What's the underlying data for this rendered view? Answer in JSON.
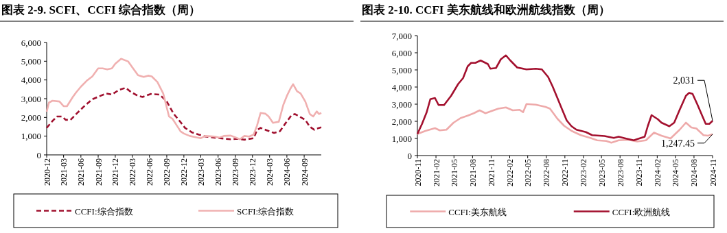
{
  "chart_data": [
    {
      "type": "line",
      "title": "图表 2-9. SCFI、CCFI 综合指数（周）",
      "legend": "bottom",
      "grid": false,
      "marker": "none",
      "xlim": [
        "2020-12",
        "2024-12"
      ],
      "xticks": [
        "2020-12",
        "2021-03",
        "2021-06",
        "2021-09",
        "2021-12",
        "2022-03",
        "2022-06",
        "2022-09",
        "2022-12",
        "2023-03",
        "2023-06",
        "2023-09",
        "2023-12",
        "2024-03",
        "2024-06",
        "2024-09"
      ],
      "ylim": [
        0,
        6000
      ],
      "yticks": [
        0,
        {
          "value": 1000,
          "label": "1,000"
        },
        {
          "value": 2000,
          "label": "2,000"
        },
        {
          "value": 3000,
          "label": "3,000"
        },
        {
          "value": 4000,
          "label": "4,000"
        },
        {
          "value": 5000,
          "label": "5,000"
        },
        {
          "value": 6000,
          "label": "6,000"
        }
      ],
      "series": [
        {
          "name": "CCFI:综合指数",
          "color": "#a0102e",
          "line_style": "dashed",
          "x": [
            "2020-12-01",
            "2021-01-01",
            "2021-01-25",
            "2021-02-19",
            "2021-03-13",
            "2021-04-07",
            "2021-05-07",
            "2021-06-19",
            "2021-08-01",
            "2021-09-13",
            "2021-10-13",
            "2021-11-13",
            "2021-12-19",
            "2022-01-25",
            "2022-02-25",
            "2022-04-01",
            "2022-04-25",
            "2022-06-07",
            "2022-07-25",
            "2022-09-01",
            "2022-10-07",
            "2022-11-13",
            "2022-12-07",
            "2023-01-13",
            "2023-02-19",
            "2023-03-25",
            "2023-05-13",
            "2023-07-01",
            "2023-08-07",
            "2023-09-13",
            "2023-10-19",
            "2023-12-07",
            "2023-12-25",
            "2024-01-13",
            "2024-02-13",
            "2024-03-25",
            "2024-04-25",
            "2024-05-25",
            "2024-06-25",
            "2024-07-13",
            "2024-08-07",
            "2024-09-07",
            "2024-10-01",
            "2024-10-25",
            "2024-11-19",
            "2024-12-01"
          ],
          "values": [
            1440,
            1810,
            2050,
            2050,
            1870,
            1870,
            2180,
            2600,
            2970,
            3150,
            3280,
            3220,
            3460,
            3580,
            3340,
            3150,
            3090,
            3250,
            3220,
            2850,
            2200,
            1750,
            1440,
            1200,
            1080,
            980,
            920,
            870,
            830,
            860,
            810,
            890,
            1320,
            1440,
            1320,
            1170,
            1260,
            1690,
            2110,
            2180,
            2050,
            1870,
            1500,
            1340,
            1440,
            1470
          ]
        },
        {
          "name": "SCFI:综合指数",
          "color": "#f0b0b0",
          "line_style": "solid",
          "x": [
            "2020-12-01",
            "2020-12-13",
            "2021-01-01",
            "2021-02-07",
            "2021-03-01",
            "2021-03-19",
            "2021-04-19",
            "2021-05-07",
            "2021-06-01",
            "2021-07-01",
            "2021-08-01",
            "2021-09-01",
            "2021-09-25",
            "2021-10-19",
            "2021-11-13",
            "2021-12-01",
            "2022-01-01",
            "2022-02-07",
            "2022-03-01",
            "2022-04-01",
            "2022-05-01",
            "2022-05-25",
            "2022-06-13",
            "2022-07-13",
            "2022-08-13",
            "2022-09-13",
            "2022-10-01",
            "2022-10-25",
            "2022-11-13",
            "2022-12-01",
            "2023-01-01",
            "2023-02-07",
            "2023-03-01",
            "2023-03-25",
            "2023-05-13",
            "2023-06-07",
            "2023-07-01",
            "2023-08-07",
            "2023-09-01",
            "2023-09-25",
            "2023-10-19",
            "2023-11-13",
            "2023-12-07",
            "2023-12-25",
            "2024-01-13",
            "2024-02-07",
            "2024-02-25",
            "2024-03-19",
            "2024-04-19",
            "2024-05-13",
            "2024-06-01",
            "2024-06-19",
            "2024-07-04",
            "2024-07-25",
            "2024-08-13",
            "2024-09-07",
            "2024-10-01",
            "2024-10-19",
            "2024-11-07",
            "2024-11-19",
            "2024-12-01"
          ],
          "values": [
            2300,
            2790,
            2890,
            2850,
            2600,
            2600,
            3090,
            3340,
            3640,
            3950,
            4190,
            4620,
            4620,
            4560,
            4620,
            4870,
            5130,
            4990,
            4680,
            4250,
            4160,
            4230,
            4190,
            3890,
            3280,
            2050,
            1930,
            1560,
            1260,
            1140,
            1010,
            930,
            890,
            1010,
            980,
            920,
            1010,
            1030,
            930,
            830,
            1010,
            980,
            1080,
            1560,
            2240,
            2200,
            2050,
            1710,
            1770,
            2670,
            3150,
            3520,
            3770,
            3400,
            3280,
            2850,
            2180,
            2050,
            2320,
            2180,
            2240
          ]
        }
      ]
    },
    {
      "type": "line",
      "title": "图表 2-10. CCFI 美东航线和欧洲航线指数（周）",
      "legend": "bottom",
      "grid": false,
      "marker": "none",
      "xlim": [
        "2020-11",
        "2024-11"
      ],
      "xticks": [
        "2020-11",
        "2021-02",
        "2021-05",
        "2021-08",
        "2021-11",
        "2022-02",
        "2022-05",
        "2022-08",
        "2022-11",
        "2023-02",
        "2023-05",
        "2023-08",
        "2023-11",
        "2024-02",
        "2024-05",
        "2024-08",
        "2024-11"
      ],
      "ylim": [
        0,
        7000
      ],
      "yticks": [
        0,
        {
          "value": 1000,
          "label": "1,000"
        },
        {
          "value": 2000,
          "label": "2,000"
        },
        {
          "value": 3000,
          "label": "3,000"
        },
        {
          "value": 4000,
          "label": "4,000"
        },
        {
          "value": 5000,
          "label": "5,000"
        },
        {
          "value": 6000,
          "label": "6,000"
        },
        {
          "value": 7000,
          "label": "7,000"
        }
      ],
      "annotations": [
        {
          "text": "2,031",
          "x": "2024-11-01",
          "y": 2031
        },
        {
          "text": "1,247.45",
          "x": "2024-11-01",
          "y": 1247.45
        }
      ],
      "series": [
        {
          "name": "CCFI:美东航线",
          "color": "#eeaaaa",
          "line_style": "solid",
          "x": [
            "2020-11-01",
            "2020-12-11",
            "2021-01-27",
            "2021-02-20",
            "2021-03-25",
            "2021-04-29",
            "2021-06-03",
            "2021-07-08",
            "2021-08-07",
            "2021-09-05",
            "2021-10-04",
            "2021-11-03",
            "2021-12-07",
            "2022-01-13",
            "2022-02-16",
            "2022-03-22",
            "2022-04-08",
            "2022-04-25",
            "2022-06-10",
            "2022-07-28",
            "2022-08-19",
            "2022-09-25",
            "2022-10-28",
            "2022-12-04",
            "2023-01-19",
            "2023-03-07",
            "2023-04-10",
            "2023-05-25",
            "2023-06-19",
            "2023-07-25",
            "2023-09-10",
            "2023-10-25",
            "2023-12-07",
            "2024-01-16",
            "2024-02-22",
            "2024-04-07",
            "2024-05-22",
            "2024-06-22",
            "2024-07-19",
            "2024-08-13",
            "2024-09-17",
            "2024-10-10",
            "2024-11-01"
          ],
          "values": [
            1260,
            1440,
            1600,
            1470,
            1510,
            1920,
            2190,
            2330,
            2470,
            2640,
            2470,
            2600,
            2740,
            2810,
            2640,
            2670,
            2530,
            3010,
            2970,
            2840,
            2740,
            2150,
            1740,
            1440,
            1190,
            1030,
            890,
            850,
            750,
            890,
            920,
            820,
            890,
            1340,
            1160,
            1000,
            1510,
            1920,
            1640,
            1580,
            1190,
            1160,
            1247.45
          ]
        },
        {
          "name": "CCFI:欧洲航线",
          "color": "#a3102e",
          "line_style": "solid",
          "x": [
            "2020-11-01",
            "2020-11-24",
            "2020-12-17",
            "2021-01-04",
            "2021-01-27",
            "2021-02-14",
            "2021-03-13",
            "2021-04-17",
            "2021-05-22",
            "2021-06-15",
            "2021-07-08",
            "2021-07-25",
            "2021-08-15",
            "2021-09-10",
            "2021-10-16",
            "2021-10-28",
            "2021-11-25",
            "2021-12-19",
            "2022-01-13",
            "2022-02-04",
            "2022-03-10",
            "2022-04-25",
            "2022-06-10",
            "2022-07-10",
            "2022-08-10",
            "2022-09-01",
            "2022-09-25",
            "2022-10-19",
            "2022-11-10",
            "2022-12-04",
            "2022-12-28",
            "2023-02-13",
            "2023-03-16",
            "2023-05-16",
            "2023-07-01",
            "2023-07-25",
            "2023-08-28",
            "2023-10-08",
            "2023-10-25",
            "2023-12-01",
            "2023-12-16",
            "2024-01-04",
            "2024-02-04",
            "2024-02-22",
            "2024-04-01",
            "2024-04-25",
            "2024-05-22",
            "2024-06-22",
            "2024-07-08",
            "2024-07-25",
            "2024-08-19",
            "2024-09-13",
            "2024-09-28",
            "2024-10-16",
            "2024-11-01"
          ],
          "values": [
            1260,
            1850,
            2530,
            3290,
            3360,
            2950,
            2950,
            3490,
            4180,
            4520,
            5210,
            5410,
            5410,
            5550,
            5340,
            5070,
            5110,
            5620,
            5850,
            5550,
            5140,
            5030,
            5070,
            5030,
            4590,
            4040,
            3360,
            2670,
            2050,
            1710,
            1510,
            1370,
            1190,
            1140,
            1030,
            1100,
            1000,
            890,
            960,
            1100,
            1710,
            2360,
            2120,
            1920,
            1710,
            1920,
            2670,
            3490,
            3660,
            3600,
            2950,
            2260,
            1850,
            1850,
            2031
          ]
        }
      ]
    }
  ]
}
